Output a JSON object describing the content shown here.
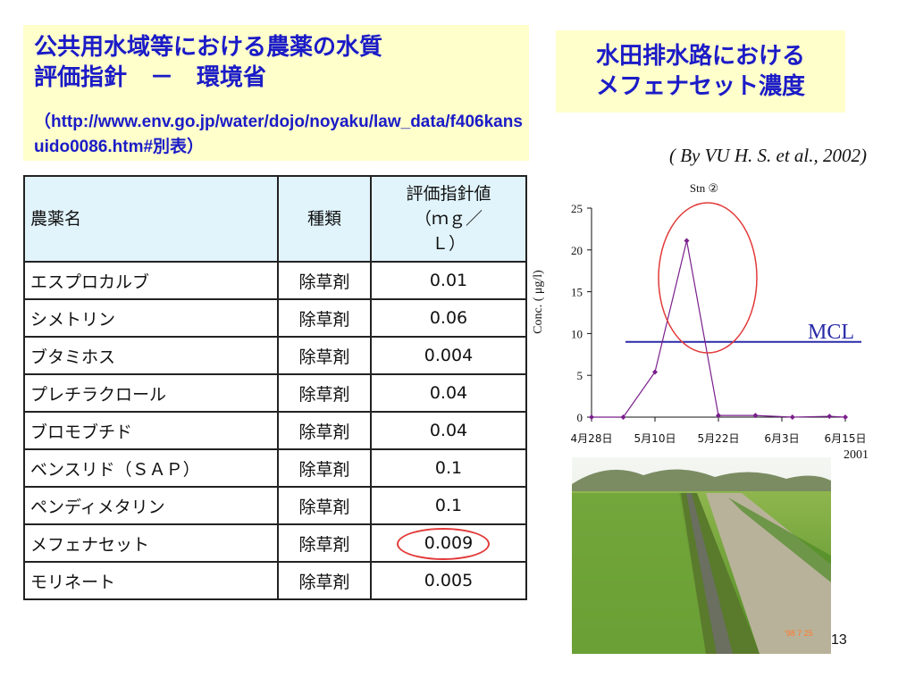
{
  "left_title": {
    "line1": "公共用水域等における農薬の水質",
    "line2": "評価指針　－　環境省",
    "url": "（http://www.env.go.jp/water/dojo/noyaku/law_data/f406kansuido0086.htm#別表）"
  },
  "right_title": {
    "line1": "水田排水路における",
    "line2": "メフェナセット濃度"
  },
  "citation": "( By VU H. S. et al., 2002)",
  "table": {
    "headers": {
      "name": "農薬名",
      "kind": "種類",
      "value_line1": "評価指針値",
      "value_line2": "（ｍｇ／",
      "value_line3": "Ｌ）"
    },
    "rows": [
      {
        "name": "エスプロカルブ",
        "kind": "除草剤",
        "value": "0.01"
      },
      {
        "name": "シメトリン",
        "kind": "除草剤",
        "value": "0.06"
      },
      {
        "name": "ブタミホス",
        "kind": "除草剤",
        "value": "0.004"
      },
      {
        "name": "プレチラクロール",
        "kind": "除草剤",
        "value": "0.04"
      },
      {
        "name": "ブロモブチド",
        "kind": "除草剤",
        "value": "0.04"
      },
      {
        "name": "ベンスリド（ＳＡＰ）",
        "kind": "除草剤",
        "value": "0.1"
      },
      {
        "name": "ペンディメタリン",
        "kind": "除草剤",
        "value": "0.1"
      },
      {
        "name": "メフェナセット",
        "kind": "除草剤",
        "value": "0.009"
      },
      {
        "name": "モリネート",
        "kind": "除草剤",
        "value": "0.005"
      }
    ],
    "highlighted_row": 7,
    "highlight_color": "#e23a3a"
  },
  "chart_data": {
    "type": "line",
    "title": "Stn ②",
    "ylabel": "Conc. ( μg/l)",
    "xlabel": "",
    "x_ticks": [
      "4月28日",
      "5月10日",
      "5月22日",
      "6月3日",
      "6月15日"
    ],
    "x_note": "2001",
    "ylim": [
      0,
      25
    ],
    "y_ticks": [
      0,
      5,
      10,
      15,
      20,
      25
    ],
    "xlim": [
      "2001-04-28",
      "2001-06-15"
    ],
    "series": [
      {
        "color": "#7a1f8c",
        "points": [
          {
            "x": "2001-04-28",
            "y": 0
          },
          {
            "x": "2001-05-04",
            "y": 0
          },
          {
            "x": "2001-05-10",
            "y": 5.4
          },
          {
            "x": "2001-05-16",
            "y": 21.1
          },
          {
            "x": "2001-05-22",
            "y": 0.2
          },
          {
            "x": "2001-05-29",
            "y": 0.2
          },
          {
            "x": "2001-06-05",
            "y": 0
          },
          {
            "x": "2001-06-12",
            "y": 0.1
          },
          {
            "x": "2001-06-15",
            "y": 0
          }
        ]
      }
    ],
    "reference_line": {
      "label": "MCL",
      "y": 9,
      "color": "#2a2aa8"
    },
    "highlight_color": "#e23a3a",
    "grid": false
  },
  "photo": {
    "description_icon": "drainage-canal-photo"
  },
  "page_number": "13"
}
